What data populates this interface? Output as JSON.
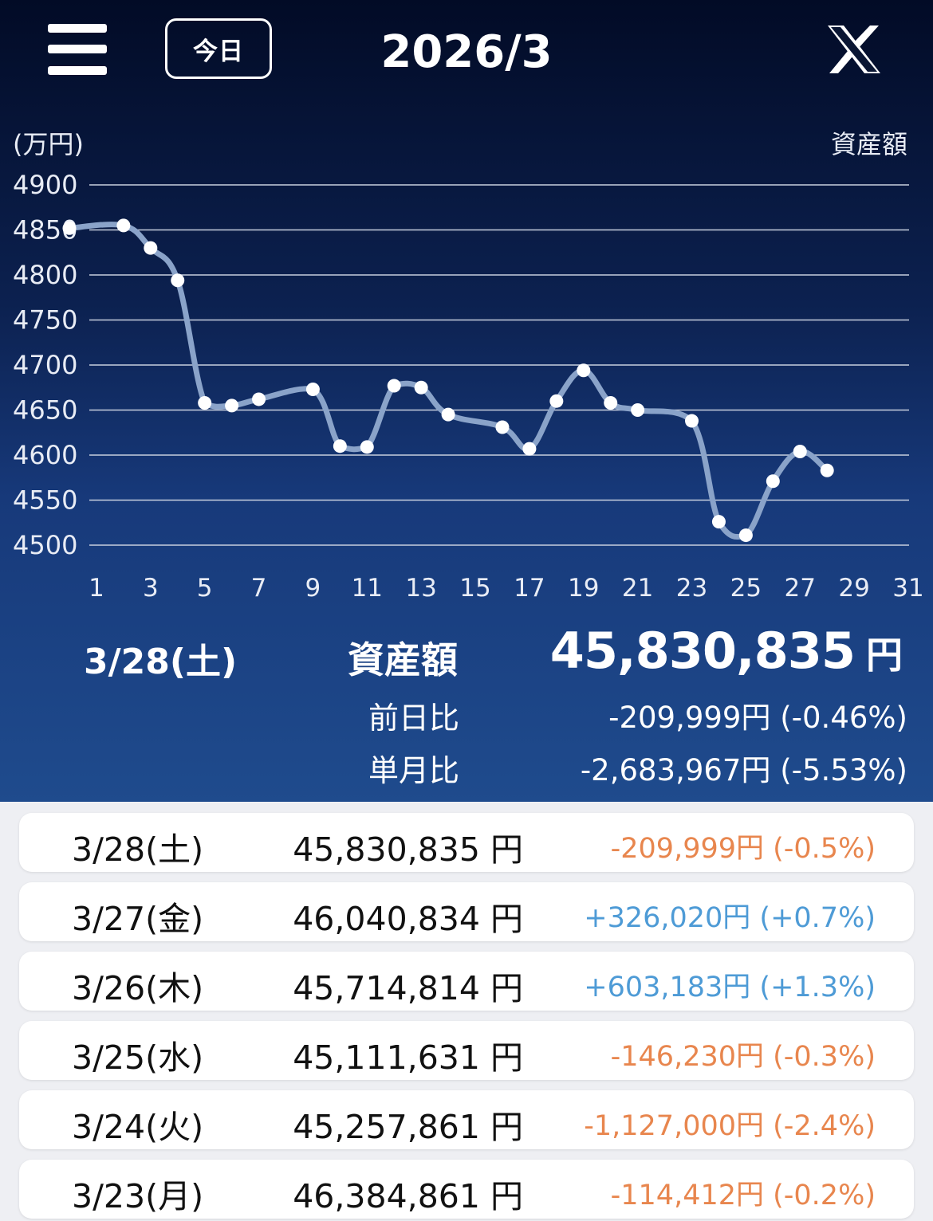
{
  "header": {
    "menu_icon": "hamburger-menu-icon",
    "today_label": "今日",
    "month_title": "2026/3",
    "share_icon": "x-logo-icon"
  },
  "chart_data": {
    "type": "line",
    "unit_label": "(万円)",
    "series_label": "資産額",
    "ylim": [
      4500,
      4900
    ],
    "yticks": [
      4900,
      4850,
      4800,
      4750,
      4700,
      4650,
      4600,
      4550,
      4500
    ],
    "xlim": [
      0,
      31
    ],
    "xticks": [
      1,
      3,
      5,
      7,
      9,
      11,
      13,
      15,
      17,
      19,
      21,
      23,
      25,
      27,
      29,
      31
    ],
    "grid": true,
    "series": [
      {
        "name": "資産額",
        "x": [
          0,
          2,
          3,
          4,
          5,
          6,
          7,
          9,
          10,
          11,
          12,
          13,
          14,
          16,
          17,
          18,
          19,
          20,
          21,
          23,
          24,
          25,
          26,
          27,
          28
        ],
        "y": [
          4852,
          4855,
          4830,
          4794,
          4658,
          4655,
          4662,
          4673,
          4610,
          4609,
          4677,
          4675,
          4645,
          4631,
          4607,
          4660,
          4694,
          4658,
          4650,
          4638,
          4526,
          4511,
          4571,
          4604,
          4583
        ]
      }
    ],
    "line_color": "#8aa3c9",
    "point_color": "#ffffff"
  },
  "summary": {
    "date": "3/28(土)",
    "label": "資産額",
    "total": "45,830,835",
    "total_unit": "円",
    "day_label": "前日比",
    "day_value": "-209,999円 (-0.46%)",
    "month_label": "単月比",
    "month_value": "-2,683,967円 (-5.53%)"
  },
  "history": [
    {
      "date": "3/28(土)",
      "amount": "45,830,835 円",
      "change": "-209,999円 (-0.5%)",
      "dir": "neg"
    },
    {
      "date": "3/27(金)",
      "amount": "46,040,834 円",
      "change": "+326,020円 (+0.7%)",
      "dir": "pos"
    },
    {
      "date": "3/26(木)",
      "amount": "45,714,814 円",
      "change": "+603,183円 (+1.3%)",
      "dir": "pos"
    },
    {
      "date": "3/25(水)",
      "amount": "45,111,631 円",
      "change": "-146,230円 (-0.3%)",
      "dir": "neg"
    },
    {
      "date": "3/24(火)",
      "amount": "45,257,861 円",
      "change": "-1,127,000円 (-2.4%)",
      "dir": "neg"
    },
    {
      "date": "3/23(月)",
      "amount": "46,384,861 円",
      "change": "-114,412円 (-0.2%)",
      "dir": "neg"
    }
  ],
  "colors": {
    "negative": "#e8864e",
    "positive": "#4e9bd6"
  }
}
